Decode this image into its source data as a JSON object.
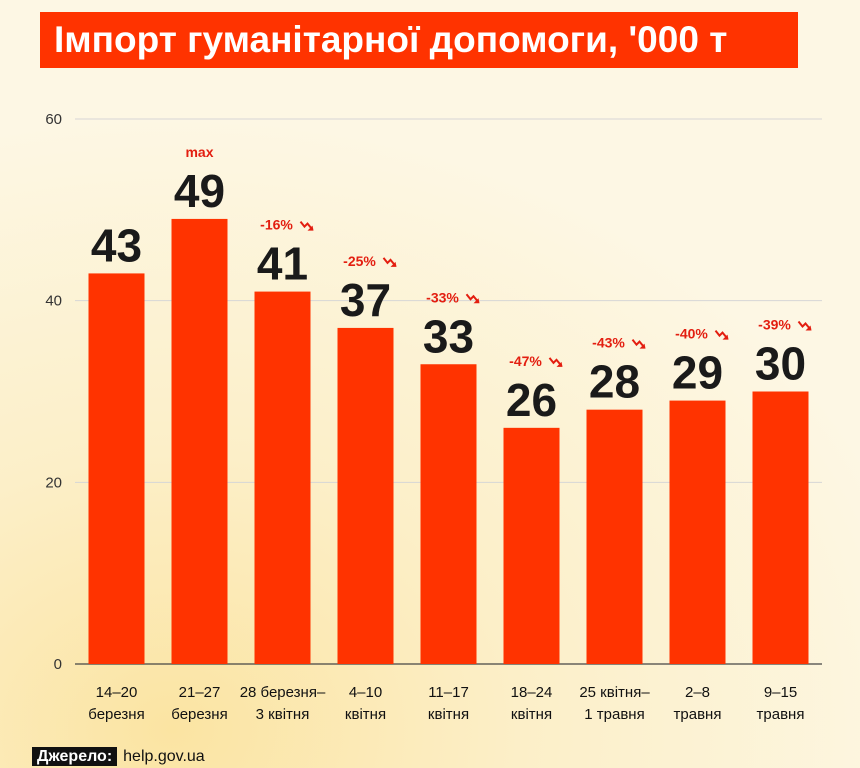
{
  "chart_data": {
    "type": "bar",
    "title": "Імпорт гуманітарної допомоги, '000 т",
    "categories": [
      [
        "14–20",
        "березня"
      ],
      [
        "21–27",
        "березня"
      ],
      [
        "28 березня–",
        "3 квітня"
      ],
      [
        "4–10",
        "квітня"
      ],
      [
        "11–17",
        "квітня"
      ],
      [
        "18–24",
        "квітня"
      ],
      [
        "25 квітня–",
        "1 травня"
      ],
      [
        "2–8",
        "травня"
      ],
      [
        "9–15",
        "травня"
      ]
    ],
    "values": [
      43,
      49,
      41,
      37,
      33,
      26,
      28,
      29,
      30
    ],
    "annotations": [
      "",
      "max",
      "-16%",
      "-25%",
      "-33%",
      "-47%",
      "-43%",
      "-40%",
      "-39%"
    ],
    "ylim": [
      0,
      60
    ],
    "yticks": [
      0,
      20,
      40,
      60
    ],
    "grid": true,
    "colors": {
      "bar": "#ff3300",
      "annotation": "#e31e10"
    }
  },
  "source": {
    "label": "Джерело:",
    "value": "help.gov.ua"
  }
}
